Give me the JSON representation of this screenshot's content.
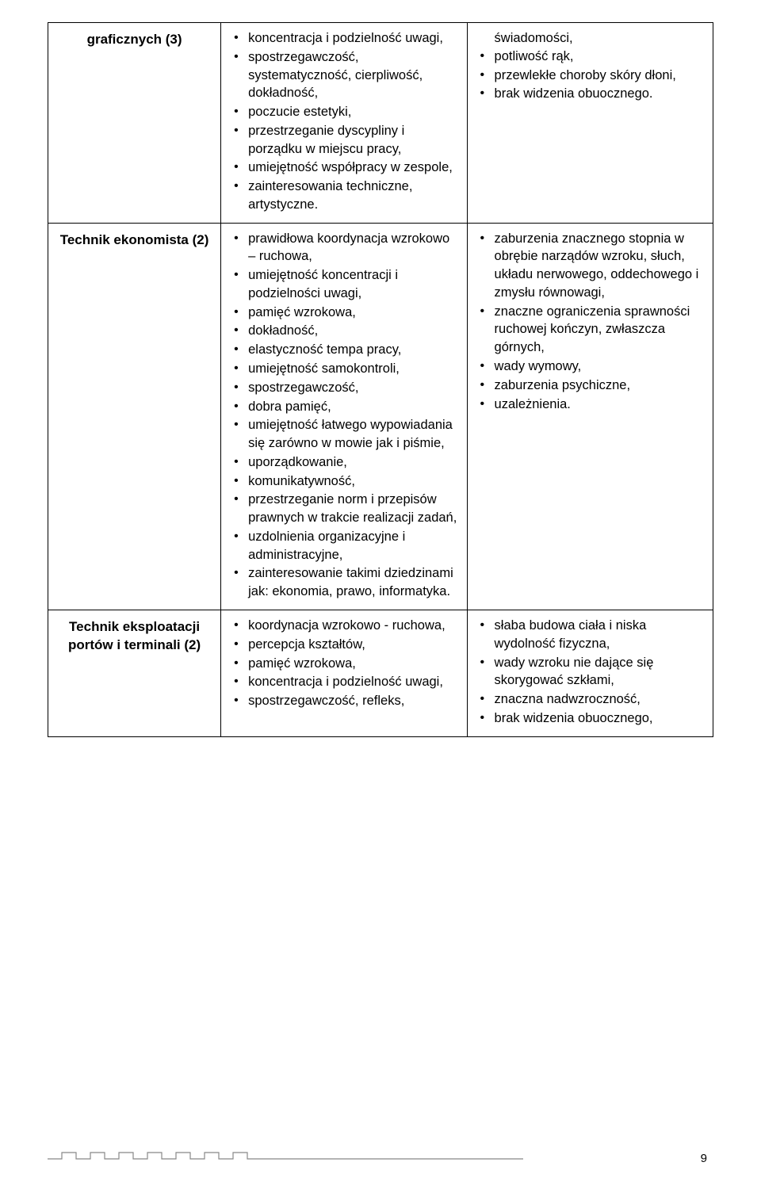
{
  "page_number": "9",
  "rows": [
    {
      "title": "graficznych (3)",
      "col2": [
        "koncentracja i podzielność uwagi,",
        "spostrzegawczość, systematyczność, cierpliwość, dokładność,",
        "poczucie estetyki,",
        "przestrzeganie dyscypliny i porządku w miejscu pracy,",
        "umiejętność współpracy w zespole,",
        "zainteresowania techniczne, artystyczne."
      ],
      "col3_prefix": "świadomości,",
      "col3": [
        "potliwość rąk,",
        "przewlekłe choroby skóry dłoni,",
        "brak widzenia obuocznego."
      ]
    },
    {
      "title": "Technik ekonomista (2)",
      "col2": [
        "prawidłowa koordynacja wzrokowo – ruchowa,",
        "umiejętność koncentracji i podzielności uwagi,",
        "pamięć wzrokowa,",
        "dokładność,",
        "elastyczność tempa pracy,",
        "umiejętność samokontroli,",
        "spostrzegawczość,",
        "dobra pamięć,",
        "umiejętność łatwego wypowiadania się zarówno w mowie jak i piśmie,",
        "uporządkowanie,",
        "komunikatywność,",
        "przestrzeganie norm i przepisów prawnych w trakcie realizacji zadań,",
        "uzdolnienia organizacyjne i administracyjne,",
        "zainteresowanie takimi dziedzinami jak: ekonomia, prawo, informatyka."
      ],
      "col3": [
        "zaburzenia znacznego stopnia w obrębie narządów wzroku, słuch, układu nerwowego, oddechowego i zmysłu równowagi,",
        "znaczne ograniczenia sprawności ruchowej kończyn, zwłaszcza górnych,",
        "wady wymowy,",
        "zaburzenia psychiczne,",
        "uzależnienia."
      ]
    },
    {
      "title": "Technik eksploatacji portów i terminali (2)",
      "col2": [
        "koordynacja wzrokowo - ruchowa,",
        "percepcja kształtów,",
        "pamięć wzrokowa,",
        "koncentracja i podzielność uwagi,",
        "spostrzegawczość, refleks,"
      ],
      "col3": [
        "słaba budowa ciała i niska wydolność fizyczna,",
        "wady wzroku nie dające się skorygować szkłami,",
        "znaczna nadwzroczność,",
        "brak widzenia obuocznego,"
      ]
    }
  ],
  "colors": {
    "text": "#000000",
    "border": "#000000",
    "wave": "#888888",
    "background": "#ffffff"
  }
}
